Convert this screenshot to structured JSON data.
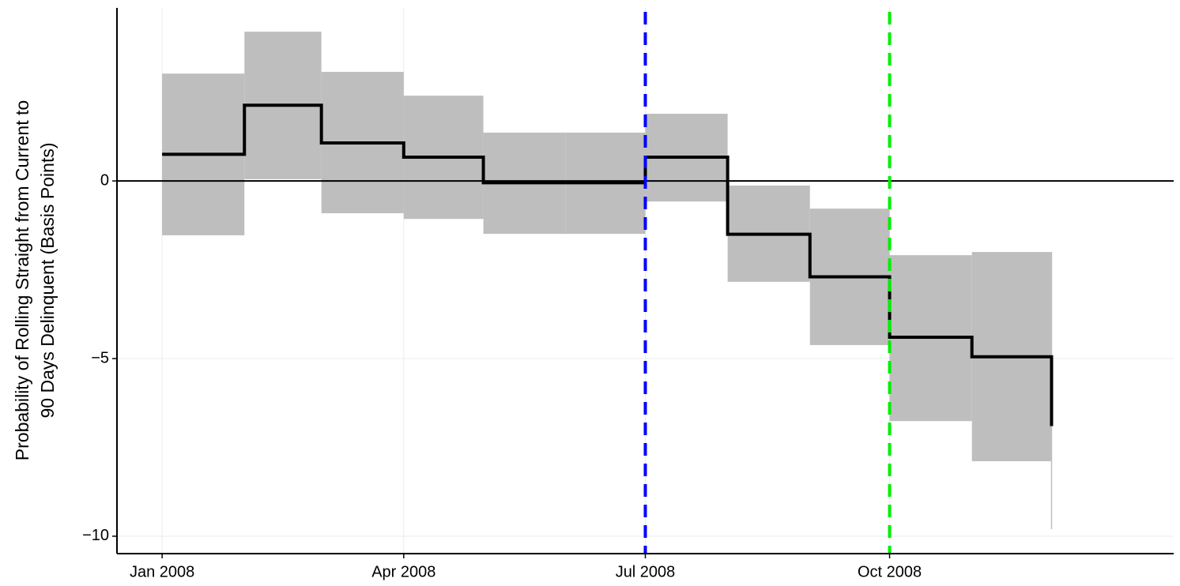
{
  "chart_data": {
    "type": "step-band",
    "y_label": [
      "Probability of Rolling Straight from Current to",
      "90 Days Delinquent (Basis Points)"
    ],
    "x": [
      "2008-01",
      "2008-02",
      "2008-03",
      "2008-04",
      "2008-05",
      "2008-06",
      "2008-07",
      "2008-08",
      "2008-09",
      "2008-10",
      "2008-11",
      "2008-12"
    ],
    "values": [
      0.75,
      2.13,
      1.07,
      0.67,
      -0.05,
      -0.05,
      0.67,
      -1.5,
      -2.7,
      -4.4,
      -4.95,
      -6.9
    ],
    "lower": [
      -1.53,
      0.05,
      -0.91,
      -1.07,
      -1.49,
      -1.49,
      -0.58,
      -2.84,
      -4.62,
      -6.76,
      -7.89,
      -9.8
    ],
    "upper": [
      3.02,
      4.2,
      3.07,
      2.4,
      1.36,
      1.36,
      1.89,
      -0.13,
      -0.78,
      -2.09,
      -2.0,
      -2.0
    ],
    "line_color": "#000000",
    "band_color": "#bebebe",
    "xlim": [
      "2007-12-15",
      "2009-01-16"
    ],
    "xticks": [
      {
        "value": "2008-01",
        "label": "Jan 2008"
      },
      {
        "value": "2008-04",
        "label": "Apr 2008"
      },
      {
        "value": "2008-07",
        "label": "Jul 2008"
      },
      {
        "value": "2008-10",
        "label": "Oct 2008"
      }
    ],
    "ylim": [
      -10.49,
      4.87
    ],
    "yticks": [
      {
        "value": -10,
        "label": "−10"
      },
      {
        "value": -5,
        "label": "−5"
      },
      0
    ],
    "hline": 0,
    "vlines": [
      {
        "x": "2008-07",
        "color": "#0000ff"
      },
      {
        "x": "2008-10",
        "color": "#00ee00"
      }
    ],
    "grid": true
  }
}
